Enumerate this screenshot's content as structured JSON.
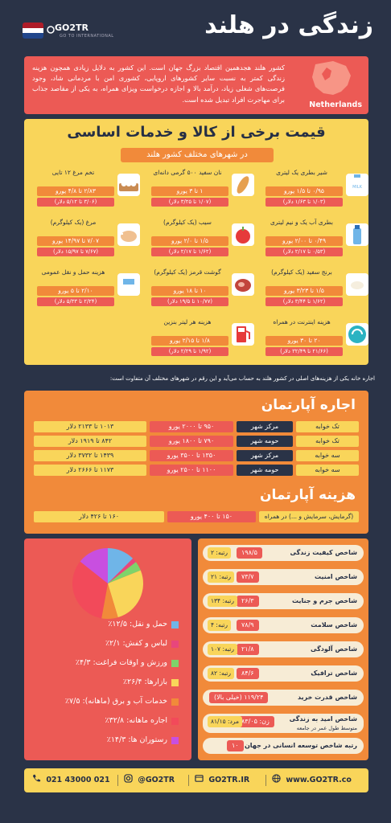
{
  "header": {
    "title": "زندگی در هلند",
    "brand": "GO2TR",
    "brand_sub": "GO TO INTERNATIONAL",
    "flag_colors": [
      "#ae1c28",
      "#ffffff",
      "#21468b"
    ]
  },
  "intro": {
    "text": "کشور هلند هجدهمین اقتصاد بزرگ جهان است. این کشور به دلایل زیادی همچون هزینه زندگی کمتر به نسبت سایر کشورهای اروپایی، کشوری امن با مردمانی شاد، وجود فرصت‌های شغلی زیاد، درآمد بالا و اجازه درخواست ویزای همراه، به یکی از مقاصد جذاب برای مهاجرت افراد تبدیل شده است.",
    "map_label": "Netherlands"
  },
  "prices": {
    "title": "قیمت برخی از کالا و خدمات اساسی",
    "subtitle": "در شهرهای مختلف کشور هلند",
    "items": [
      {
        "icon": "milk-icon",
        "label": "شیر بطری یک لیتری",
        "eur": "۰/۹۵ تا ۱/۵ یورو",
        "usd": "(۱/۰۳ تا ۱/۶۳ دلار)"
      },
      {
        "icon": "bread-icon",
        "label": "نان سفید ۵۰۰ گرمی دانه‌ای",
        "eur": "۱ تا ۳ یورو",
        "usd": "(۱/۰۷ تا ۳/۲۵ دلار)"
      },
      {
        "icon": "eggs-icon",
        "label": "تخم مرغ ۱۲ تایی",
        "eur": "۲/۸۳ تا ۴/۸ یورو",
        "usd": "(۳/۰۶ تا ۵/۱۲ دلار)"
      },
      {
        "icon": "water-bottle-icon",
        "label": "بطری آب یک و نیم لیتری",
        "eur": "۰/۴۹ تا ۲/۰۰ یورو",
        "usd": "(۰/۵۳ تا ۲/۱۷ دلار)"
      },
      {
        "icon": "apple-icon",
        "label": "سیب (یک کیلوگرم)",
        "eur": "۱/۵ تا ۲/۰ یورو",
        "usd": "(۱/۶۲ تا ۲/۱۷ دلار)"
      },
      {
        "icon": "chicken-icon",
        "label": "مرغ (یک کیلوگرم)",
        "eur": "۷/۰۷ تا ۱۴/۹۷ یورو",
        "usd": "(۷/۶۷ تا ۱۵/۹۷ دلار)"
      },
      {
        "icon": "rice-icon",
        "label": "برنج سفید (یک کیلوگرم)",
        "eur": "۱/۵ تا ۳/۲۳ یورو",
        "usd": "(۱/۶۲ تا ۳/۴۴ دلار)"
      },
      {
        "icon": "meat-icon",
        "label": "گوشت قرمز (یک کیلوگرم)",
        "eur": "۱۰ تا ۱۸ یورو",
        "usd": "(۱۰/۷۷ تا ۱۹/۵ دلار)"
      },
      {
        "icon": "bus-icon",
        "label": "هزینه حمل و نقل عمومی",
        "eur": "۲/۱۰ تا ۵ یورو",
        "usd": "(۲/۲۴ تا ۵/۳۳ دلار)"
      },
      {
        "icon": "sim-card-icon",
        "label": "هزینه اینترنت در همراه",
        "eur": "۲۰ تا ۳۰ یورو",
        "usd": "(۲۱/۶۶ تا ۳۲/۴۹ دلار)"
      },
      {
        "icon": "fuel-pump-icon",
        "label": "هزینه هر لیتر بنزین",
        "eur": "۱/۸ تا ۲/۱۵ یورو",
        "usd": "(۱/۹۲ تا ۲/۲۹ دلار)"
      }
    ]
  },
  "note": "اجاره خانه یکی از هزینه‌های اصلی در کشور هلند به حساب می‌آید و این رقم در شهرهای مختلف آن متفاوت است:",
  "rent": {
    "title": "اجاره آپارتمان",
    "rows": [
      {
        "type": "تک خوابه",
        "area": "مرکز شهر",
        "eur": "۹۵۰ تا ۲۰۰۰ یورو",
        "usd": "۱۰۱۳ تا ۲۱۳۳ دلار"
      },
      {
        "type": "تک خوابه",
        "area": "حومه شهر",
        "eur": "۷۹۰ تا ۱۸۰۰ یورو",
        "usd": "۸۴۲ تا ۱۹۱۹ دلار"
      },
      {
        "type": "سه خوابه",
        "area": "مرکز شهر",
        "eur": "۱۳۵۰ تا ۳۵۰۰ یورو",
        "usd": "۱۴۳۹ تا ۳۷۳۲ دلار"
      },
      {
        "type": "سه خوابه",
        "area": "حومه شهر",
        "eur": "۱۱۰۰ تا ۲۵۰۰ یورو",
        "usd": "۱۱۷۳ تا ۲۶۶۶ دلار"
      }
    ],
    "cost_title": "هزینه آپارتمان",
    "cost_label": "(گرمایش، سرمایش و ...) در همراه",
    "cost_eur": "۱۵۰ تا ۴۰۰ یورو",
    "cost_usd": "۱۶۰ تا ۴۲۶ دلار"
  },
  "expenses": {
    "legend": [
      {
        "label": "حمل و نقل: ۱۲/۵٪",
        "color": "#6fb5e8"
      },
      {
        "label": "لباس و کفش: ۲/۱٪",
        "color": "#e8467c"
      },
      {
        "label": "ورزش و اوقات فراغت: ۴/۳٪",
        "color": "#7ed36a"
      },
      {
        "label": "بازارها: ۲۶/۴٪",
        "color": "#f9d55a"
      },
      {
        "label": "خدمات آب و برق (ماهانه): ۷/۵٪",
        "color": "#f18a3a"
      },
      {
        "label": "اجاره ماهانه: ۳۲/۸٪",
        "color": "#f24a5a"
      },
      {
        "label": "رستوران ها: ۱۴/۳٪",
        "color": "#c84fe0"
      }
    ]
  },
  "chart_data": {
    "type": "pie",
    "categories": [
      "حمل و نقل",
      "لباس و کفش",
      "ورزش و اوقات فراغت",
      "بازارها",
      "خدمات آب و برق (ماهانه)",
      "اجاره ماهانه",
      "رستوران ها"
    ],
    "values": [
      12.5,
      2.1,
      4.3,
      26.4,
      7.5,
      32.8,
      14.3
    ],
    "colors": [
      "#6fb5e8",
      "#e8467c",
      "#7ed36a",
      "#f9d55a",
      "#f18a3a",
      "#f24a5a",
      "#c84fe0"
    ]
  },
  "indices": [
    {
      "name": "شاخص کیفیت زندگی",
      "value": "۱۹۸/۵",
      "rank": "رتبه: ۲"
    },
    {
      "name": "شاخص امنیت",
      "value": "۷۳/۷",
      "rank": "رتبه: ۲۱"
    },
    {
      "name": "شاخص جرم و جنایت",
      "value": "۲۶/۳",
      "rank": "رتبه: ۱۳۴"
    },
    {
      "name": "شاخص سلامت",
      "value": "۷۸/۹",
      "rank": "رتبه: ۴"
    },
    {
      "name": "شاخص آلودگی",
      "value": "۲۱/۸",
      "rank": "رتبه: ۱۰۷"
    },
    {
      "name": "شاخص ترافیک",
      "value": "۸۴/۶",
      "rank": "رتبه: ۸۲"
    },
    {
      "name": "شاخص قدرت خرید",
      "value": "۱۱۹/۲۴ (خیلی بالا)",
      "rank": ""
    },
    {
      "name": "شاخص امید به زندگی",
      "name2": "متوسط طول عمر در جامعه",
      "value": "زن: ۸۳/۰۵",
      "rank": "مرد: ۸۱/۱۵"
    },
    {
      "name": "رتبه شاخص توسعه انسانی در جهان",
      "value": "۱۰",
      "rank": ""
    }
  ],
  "footer": {
    "phone": "021 43000 021",
    "instagram": "@GO2TR",
    "site1": "GO2TR.IR",
    "site2": "www.GO2TR.co"
  }
}
